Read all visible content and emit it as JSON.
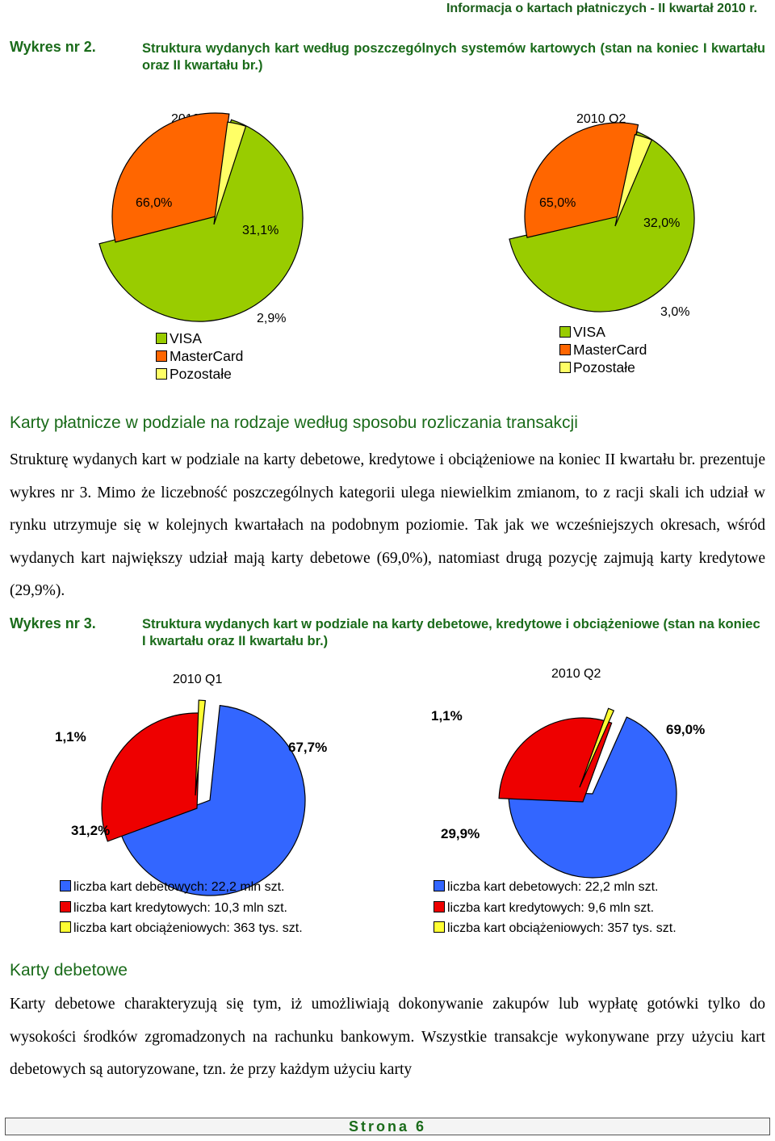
{
  "header": {
    "title": "Informacja o kartach płatniczych - II kwartał 2010 r."
  },
  "chart2": {
    "label": "Wykres nr 2.",
    "title": "Struktura wydanych kart według poszczególnych systemów kartowych (stan na koniec I kwartału oraz II kwartału br.)"
  },
  "section1": {
    "heading": "Karty płatnicze w podziale na rodzaje według sposobu rozliczania transakcji",
    "body": "Strukturę wydanych kart w podziale na karty debetowe, kredytowe i obciążeniowe na koniec II kwartału br. prezentuje wykres nr 3. Mimo że liczebność poszczególnych kategorii ulega niewielkim zmianom, to z racji skali ich udział w rynku utrzymuje się w kolejnych kwartałach na podobnym poziomie. Tak jak we wcześniejszych okresach, wśród wydanych kart największy udział mają karty debetowe (69,0%), natomiast drugą pozycję zajmują karty kredytowe (29,9%)."
  },
  "chart3": {
    "label": "Wykres nr 3.",
    "title": "Struktura wydanych kart w podziale na karty debetowe, kredytowe i obciążeniowe (stan na koniec I kwartału oraz II kwartału br.)"
  },
  "section2": {
    "heading": "Karty debetowe",
    "body": "Karty debetowe charakteryzują się tym, iż umożliwiają dokonywanie zakupów lub wypłatę gotówki tylko do wysokości środków zgromadzonych na rachunku bankowym. Wszystkie transakcje wykonywane przy użyciu kart debetowych są autoryzowane, tzn. że przy każdym użyciu karty"
  },
  "footer": {
    "page": "Strona 6"
  },
  "chart_data": [
    {
      "type": "pie",
      "title": "2010 Q1",
      "categories": [
        "VISA",
        "MasterCard",
        "Pozostałe"
      ],
      "values": [
        66.0,
        31.1,
        2.9
      ],
      "labels": [
        "66,0%",
        "31,1%",
        "2,9%"
      ],
      "colors": [
        "#99cc00",
        "#ff6600",
        "#ffff66"
      ],
      "legend": [
        "VISA",
        "MasterCard",
        "Pozostałe"
      ]
    },
    {
      "type": "pie",
      "title": "2010 Q2",
      "categories": [
        "VISA",
        "MasterCard",
        "Pozostałe"
      ],
      "values": [
        65.0,
        32.0,
        3.0
      ],
      "labels": [
        "65,0%",
        "32,0%",
        "3,0%"
      ],
      "colors": [
        "#99cc00",
        "#ff6600",
        "#ffff66"
      ],
      "legend": [
        "VISA",
        "MasterCard",
        "Pozostałe"
      ]
    },
    {
      "type": "pie",
      "title": "2010 Q1",
      "categories": [
        "debetowe",
        "kredytowe",
        "obciążeniowe"
      ],
      "values": [
        67.7,
        31.2,
        1.1
      ],
      "labels": [
        "67,7%",
        "31,2%",
        "1,1%"
      ],
      "colors": [
        "#3366ff",
        "#ee0000",
        "#ffff33"
      ],
      "legend": [
        "liczba kart debetowych: 22,2 mln szt.",
        "liczba kart kredytowych: 10,3 mln szt.",
        "liczba kart obciążeniowych: 363 tys. szt."
      ]
    },
    {
      "type": "pie",
      "title": "2010 Q2",
      "categories": [
        "debetowe",
        "kredytowe",
        "obciążeniowe"
      ],
      "values": [
        69.0,
        29.9,
        1.1
      ],
      "labels": [
        "69,0%",
        "29,9%",
        "1,1%"
      ],
      "colors": [
        "#3366ff",
        "#ee0000",
        "#ffff33"
      ],
      "legend": [
        "liczba kart debetowych: 22,2 mln szt.",
        "liczba kart kredytowych: 9,6 mln szt.",
        "liczba kart obciążeniowych: 357 tys. szt."
      ]
    }
  ]
}
